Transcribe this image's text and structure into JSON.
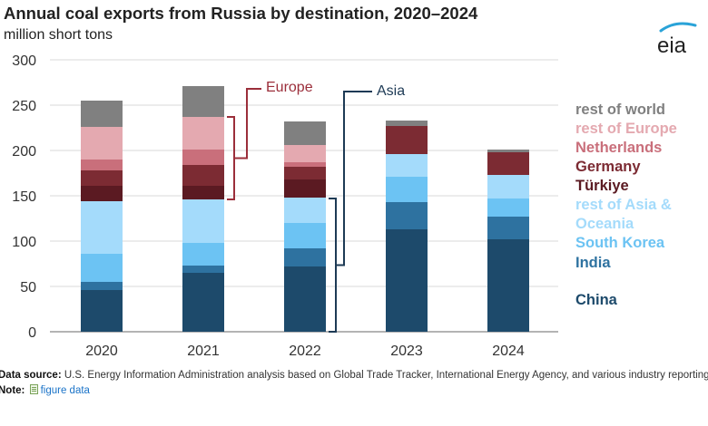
{
  "title": "Annual coal exports from Russia by destination, 2020–2024",
  "subtitle": "million short tons",
  "logo_text": "eia",
  "footer": {
    "source_label": "Data source:",
    "source_text": "U.S. Energy Information Administration analysis based on Global Trade Tracker, International Energy Agency, and various industry reporting",
    "note_label": "Note:",
    "note_link": "figure data"
  },
  "colors": {
    "China": "#1d4a6b",
    "India": "#2e72a0",
    "South Korea": "#6cc3f3",
    "rest of Asia & Oceania": "#a4dbfb",
    "Türkiye": "#5b1a22",
    "Germany": "#7c2b33",
    "Netherlands": "#c96f7b",
    "rest of Europe": "#e4a9b0",
    "rest of world": "#808080",
    "europe_annotation": "#9b2e3a",
    "asia_annotation": "#1d3a55"
  },
  "chart_data": {
    "type": "bar",
    "stacked": true,
    "categories": [
      "2020",
      "2021",
      "2022",
      "2023",
      "2024"
    ],
    "ylim": [
      0,
      300
    ],
    "yticks": [
      0,
      50,
      100,
      150,
      200,
      250,
      300
    ],
    "ylabel": "million short tons",
    "grid": true,
    "series": [
      {
        "name": "China",
        "values": [
          46,
          65,
          72,
          113,
          102
        ]
      },
      {
        "name": "India",
        "values": [
          9,
          8,
          20,
          30,
          25
        ]
      },
      {
        "name": "South Korea",
        "values": [
          31,
          25,
          28,
          28,
          20
        ]
      },
      {
        "name": "rest of Asia & Oceania",
        "values": [
          58,
          48,
          28,
          25,
          26
        ]
      },
      {
        "name": "Türkiye",
        "values": [
          17,
          15,
          20,
          0,
          0
        ]
      },
      {
        "name": "Germany",
        "values": [
          17,
          23,
          14,
          31,
          25
        ]
      },
      {
        "name": "Netherlands",
        "values": [
          12,
          17,
          5,
          0,
          0
        ]
      },
      {
        "name": "rest of Europe",
        "values": [
          36,
          36,
          19,
          0,
          0
        ]
      },
      {
        "name": "rest of world",
        "values": [
          29,
          34,
          26,
          6,
          3
        ]
      }
    ],
    "legend_labels": [
      "rest of world",
      "rest of Europe",
      "Netherlands",
      "Germany",
      "Türkiye",
      "rest of Asia &",
      "Oceania",
      "South Korea",
      "India",
      "China"
    ],
    "annotations": [
      {
        "label": "Europe",
        "year": "2021",
        "range": [
          146,
          237
        ]
      },
      {
        "label": "Asia",
        "year": "2022",
        "range": [
          0,
          147
        ]
      }
    ]
  }
}
